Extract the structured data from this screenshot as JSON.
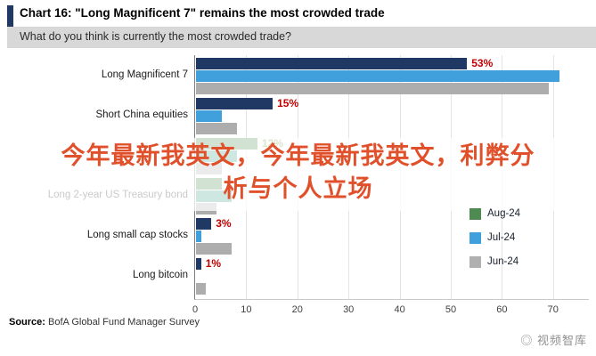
{
  "chart_data": {
    "type": "bar",
    "orientation": "horizontal",
    "title": "Chart 16: \"Long Magnificent 7\" remains the most crowded trade",
    "subtitle": "What do you think is currently the most crowded trade?",
    "categories": [
      "Long Magnificent 7",
      "Short China equities",
      "",
      "Long 2-year US Treasury bond",
      "Long small cap stocks",
      "Long bitcoin"
    ],
    "series": [
      {
        "name": "Aug-24",
        "values": [
          53,
          15,
          12,
          5,
          3,
          1
        ]
      },
      {
        "name": "Jul-24",
        "values": [
          71,
          5,
          8,
          7,
          1,
          0
        ]
      },
      {
        "name": "Jun-24",
        "values": [
          69,
          8,
          5,
          4,
          7,
          2
        ]
      }
    ],
    "value_labels": [
      "53%",
      "15%",
      "12%",
      "",
      "3%",
      "1%"
    ],
    "value_label_colors": [
      "#c00000",
      "#c00000",
      "#6f8f2e",
      "",
      "#c00000",
      "#c00000"
    ],
    "xlim": [
      0,
      77
    ],
    "xticks": [
      0,
      10,
      20,
      30,
      40,
      50,
      60,
      70
    ],
    "grid": "vertical",
    "legend": [
      "Aug-24",
      "Jul-24",
      "Jun-24"
    ],
    "legend_colors": [
      "#4e8a52",
      "#3fa0dc",
      "#b0b0b0"
    ],
    "legend_position": "right-middle",
    "highlight_rows": [
      2,
      3
    ]
  },
  "overlay": {
    "line1": "今年最新我英文，今年最新我英文，利弊分",
    "line2": "析与个人立场"
  },
  "source": {
    "label": "Source:",
    "text": "BofA Global Fund Manager Survey"
  },
  "watermark": "◎ 视频智库",
  "colors": {
    "accent": "#1f3864",
    "bar_navy": "#1f3864",
    "bar_blue": "#3fa0dc",
    "bar_gray": "#adadad",
    "bar_green": "#3e8648",
    "bar_teal": "#35a183",
    "subtitle_band": "#d8d8d8",
    "overlay_text": "#e0512b"
  }
}
